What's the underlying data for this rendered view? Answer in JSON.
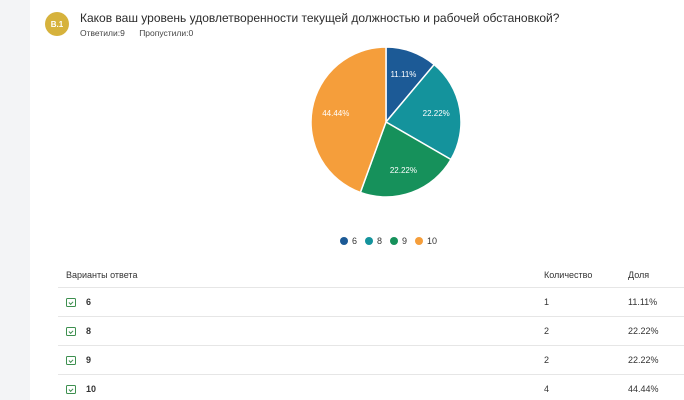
{
  "question": {
    "badge": "В.1",
    "title": "Каков ваш уровень удовлетворенности текущей должностью и рабочей обстановкой?",
    "answered": "Ответили:9",
    "skipped": "Пропустили:0"
  },
  "chart_data": {
    "type": "pie",
    "categories": [
      "6",
      "8",
      "9",
      "10"
    ],
    "values": [
      11.11,
      22.22,
      22.22,
      44.44
    ],
    "labels": [
      "11.11%",
      "22.22%",
      "22.22%",
      "44.44%"
    ],
    "colors": [
      "#1c5a96",
      "#14939c",
      "#16915b",
      "#f59e3b"
    ],
    "legend_position": "bottom"
  },
  "table": {
    "headers": [
      "Варианты ответа",
      "Количество",
      "Доля"
    ],
    "rows": [
      {
        "option": "6",
        "count": "1",
        "share": "11.11%"
      },
      {
        "option": "8",
        "count": "2",
        "share": "22.22%"
      },
      {
        "option": "9",
        "count": "2",
        "share": "22.22%"
      },
      {
        "option": "10",
        "count": "4",
        "share": "44.44%"
      }
    ]
  }
}
